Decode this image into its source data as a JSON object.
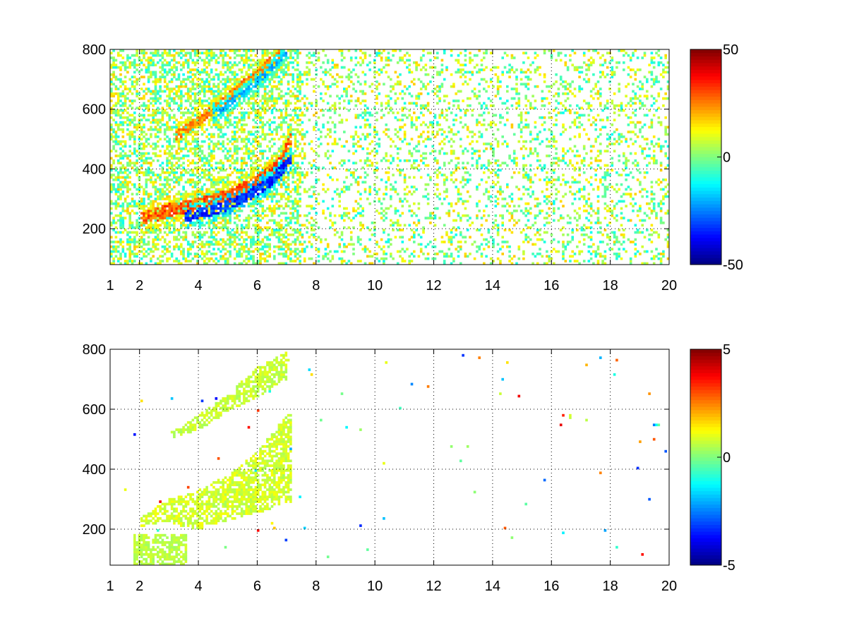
{
  "chart_data": [
    {
      "type": "heatmap",
      "title": "",
      "xlabel": "",
      "ylabel": "",
      "xlim": [
        1,
        20
      ],
      "ylim": [
        80,
        800
      ],
      "x_ticks": [
        "1",
        "2",
        "4",
        "6",
        "8",
        "10",
        "12",
        "14",
        "16",
        "18",
        "20"
      ],
      "x_tick_values": [
        1,
        2,
        4,
        6,
        8,
        10,
        12,
        14,
        16,
        18,
        20
      ],
      "y_ticks": [
        "200",
        "400",
        "600",
        "800"
      ],
      "y_tick_values": [
        200,
        400,
        600,
        800
      ],
      "grid": true,
      "colormap": "jet",
      "colorbar": {
        "range": [
          -50,
          50
        ],
        "labels": [
          "50",
          "0",
          "-50"
        ],
        "label_values": [
          50,
          0,
          -50
        ]
      },
      "features": [
        {
          "kind": "band",
          "description_points": [
            [
              2.0,
              230
            ],
            [
              3.0,
              262
            ],
            [
              4.0,
              280
            ],
            [
              5.0,
              310
            ],
            [
              6.0,
              360
            ],
            [
              6.8,
              420
            ],
            [
              7.2,
              520
            ]
          ],
          "value": 35,
          "width": 22
        },
        {
          "kind": "band",
          "description_points": [
            [
              3.2,
              510
            ],
            [
              4.0,
              560
            ],
            [
              5.0,
              640
            ],
            [
              6.0,
              720
            ],
            [
              6.8,
              790
            ]
          ],
          "value": 30,
          "width": 16
        },
        {
          "kind": "band",
          "description_points": [
            [
              3.5,
              240
            ],
            [
              4.5,
              260
            ],
            [
              5.5,
              300
            ],
            [
              6.5,
              360
            ],
            [
              7.2,
              440
            ]
          ],
          "value": -40,
          "width": 18
        },
        {
          "kind": "band",
          "description_points": [
            [
              4.5,
              580
            ],
            [
              5.5,
              650
            ],
            [
              6.3,
              720
            ],
            [
              7.0,
              790
            ]
          ],
          "value": -25,
          "width": 14
        }
      ],
      "noise": {
        "x_range": [
          1,
          20
        ],
        "y_range": [
          80,
          800
        ],
        "value_range": [
          -12,
          18
        ],
        "density": 0.22
      }
    },
    {
      "type": "heatmap",
      "title": "",
      "xlabel": "",
      "ylabel": "",
      "xlim": [
        1,
        20
      ],
      "ylim": [
        80,
        800
      ],
      "x_ticks": [
        "1",
        "2",
        "4",
        "6",
        "8",
        "10",
        "12",
        "14",
        "16",
        "18",
        "20"
      ],
      "x_tick_values": [
        1,
        2,
        4,
        6,
        8,
        10,
        12,
        14,
        16,
        18,
        20
      ],
      "y_ticks": [
        "200",
        "400",
        "600",
        "800"
      ],
      "y_tick_values": [
        200,
        400,
        600,
        800
      ],
      "grid": true,
      "colormap": "jet",
      "colorbar": {
        "range": [
          -5,
          5
        ],
        "labels": [
          "5",
          "0",
          "-5"
        ],
        "label_values": [
          5,
          0,
          -5
        ]
      },
      "features": [
        {
          "kind": "region",
          "x_range": [
            2.0,
            7.2
          ],
          "y_low_curve": [
            [
              2.0,
              210
            ],
            [
              3.0,
              220
            ],
            [
              4.0,
              200
            ],
            [
              5.0,
              230
            ],
            [
              6.0,
              250
            ],
            [
              7.0,
              290
            ]
          ],
          "y_high_curve": [
            [
              2.0,
              240
            ],
            [
              3.0,
              300
            ],
            [
              4.0,
              330
            ],
            [
              5.0,
              380
            ],
            [
              6.0,
              460
            ],
            [
              7.0,
              580
            ]
          ],
          "value": 0.8
        },
        {
          "kind": "region",
          "x_range": [
            3.0,
            7.0
          ],
          "y_low_curve": [
            [
              3.0,
              500
            ],
            [
              4.0,
              530
            ],
            [
              5.0,
              590
            ],
            [
              6.0,
              640
            ],
            [
              7.0,
              700
            ]
          ],
          "y_high_curve": [
            [
              3.0,
              520
            ],
            [
              4.0,
              580
            ],
            [
              5.0,
              650
            ],
            [
              6.0,
              740
            ],
            [
              7.0,
              790
            ]
          ],
          "value": 0.7
        },
        {
          "kind": "region",
          "x_range": [
            1.8,
            3.6
          ],
          "y_low_curve": [
            [
              1.8,
              80
            ],
            [
              3.6,
              80
            ]
          ],
          "y_high_curve": [
            [
              1.8,
              180
            ],
            [
              3.6,
              180
            ]
          ],
          "value": 0.6
        }
      ],
      "noise": {
        "x_range": [
          1,
          20
        ],
        "y_range": [
          80,
          800
        ],
        "value_range": [
          -4,
          4
        ],
        "density": 0.004
      }
    }
  ]
}
